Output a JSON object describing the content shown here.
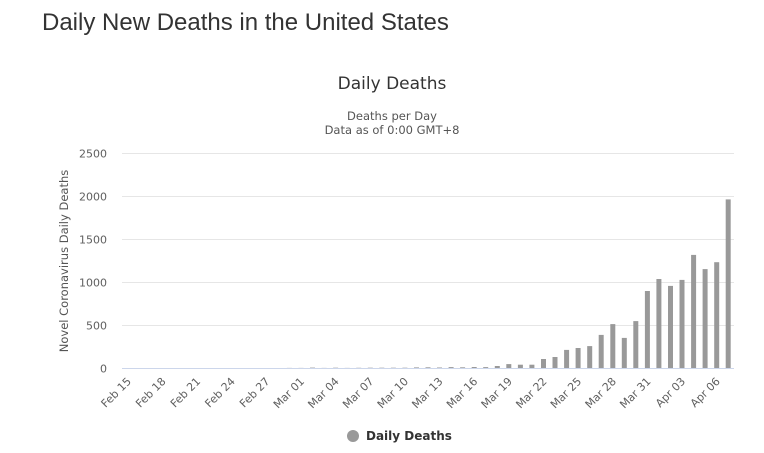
{
  "page": {
    "title": "Daily New Deaths in the United States"
  },
  "chart_data": {
    "type": "bar",
    "title": "Daily Deaths",
    "subtitle_lines": [
      "Deaths per Day",
      "Data as of 0:00 GMT+8"
    ],
    "xlabel": "",
    "ylabel": "Novel Coronavirus Daily Deaths",
    "ylim": [
      0,
      2500
    ],
    "yticks": [
      0,
      500,
      1000,
      1500,
      2000,
      2500
    ],
    "grid": true,
    "legend": {
      "position": "bottom-center",
      "entries": [
        "Daily Deaths"
      ]
    },
    "bar_color": "#999999",
    "categories": [
      "Feb 15",
      "Feb 16",
      "Feb 17",
      "Feb 18",
      "Feb 19",
      "Feb 20",
      "Feb 21",
      "Feb 22",
      "Feb 23",
      "Feb 24",
      "Feb 25",
      "Feb 26",
      "Feb 27",
      "Feb 28",
      "Feb 29",
      "Mar 01",
      "Mar 02",
      "Mar 03",
      "Mar 04",
      "Mar 05",
      "Mar 06",
      "Mar 07",
      "Mar 08",
      "Mar 09",
      "Mar 10",
      "Mar 11",
      "Mar 12",
      "Mar 13",
      "Mar 14",
      "Mar 15",
      "Mar 16",
      "Mar 17",
      "Mar 18",
      "Mar 19",
      "Mar 20",
      "Mar 21",
      "Mar 22",
      "Mar 23",
      "Mar 24",
      "Mar 25",
      "Mar 26",
      "Mar 27",
      "Mar 28",
      "Mar 29",
      "Mar 30",
      "Mar 31",
      "Apr 01",
      "Apr 02",
      "Apr 03",
      "Apr 04",
      "Apr 05",
      "Apr 06",
      "Apr 07"
    ],
    "xtick_labels": [
      "Feb 15",
      "Feb 18",
      "Feb 21",
      "Feb 24",
      "Feb 27",
      "Mar 01",
      "Mar 04",
      "Mar 07",
      "Mar 10",
      "Mar 13",
      "Mar 16",
      "Mar 19",
      "Mar 22",
      "Mar 25",
      "Mar 28",
      "Mar 31",
      "Apr 03",
      "Apr 06"
    ],
    "series": [
      {
        "name": "Daily Deaths",
        "values": [
          0,
          0,
          0,
          0,
          0,
          0,
          0,
          0,
          0,
          0,
          0,
          0,
          0,
          0,
          1,
          1,
          5,
          1,
          4,
          1,
          2,
          3,
          3,
          4,
          4,
          7,
          8,
          6,
          10,
          8,
          12,
          10,
          23,
          45,
          38,
          38,
          105,
          128,
          210,
          232,
          255,
          385,
          510,
          350,
          545,
          895,
          1035,
          955,
          1025,
          1315,
          1150,
          1230,
          1960
        ]
      }
    ]
  }
}
